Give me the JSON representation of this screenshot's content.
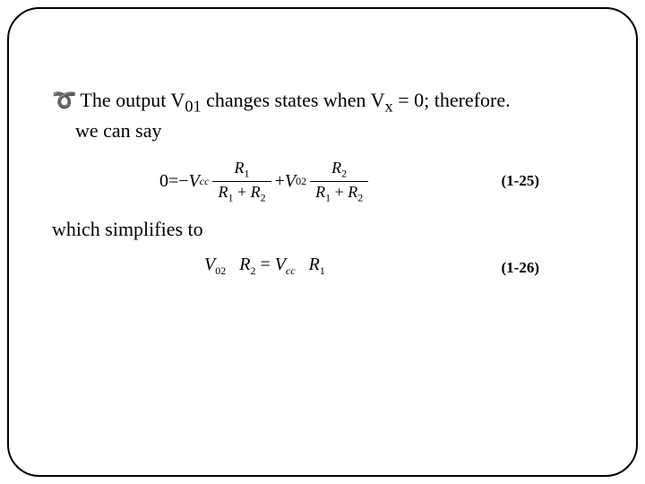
{
  "bullet": {
    "glyph": "།",
    "text_before_v01": "The output V",
    "v01_sub": "01",
    "text_mid": " changes states when V",
    "vx_sub": "x",
    "text_after": " = 0; therefore.",
    "line2": "we can say"
  },
  "equation1": {
    "lhs_zero": "0",
    "equals": " = ",
    "minus": "−",
    "V": "V",
    "cc": "cc",
    "R": "R",
    "one": "1",
    "two": "2",
    "plus": " + ",
    "V02": "V",
    "v02_sub": "02",
    "label": "(1-25)"
  },
  "simplifies_text": "which simplifies to",
  "equation2": {
    "V": "V",
    "v02_sub": "02",
    "R": "R",
    "two": "2",
    "equals": " = ",
    "cc": "cc",
    "one": "1",
    "label": "(1-26)"
  }
}
